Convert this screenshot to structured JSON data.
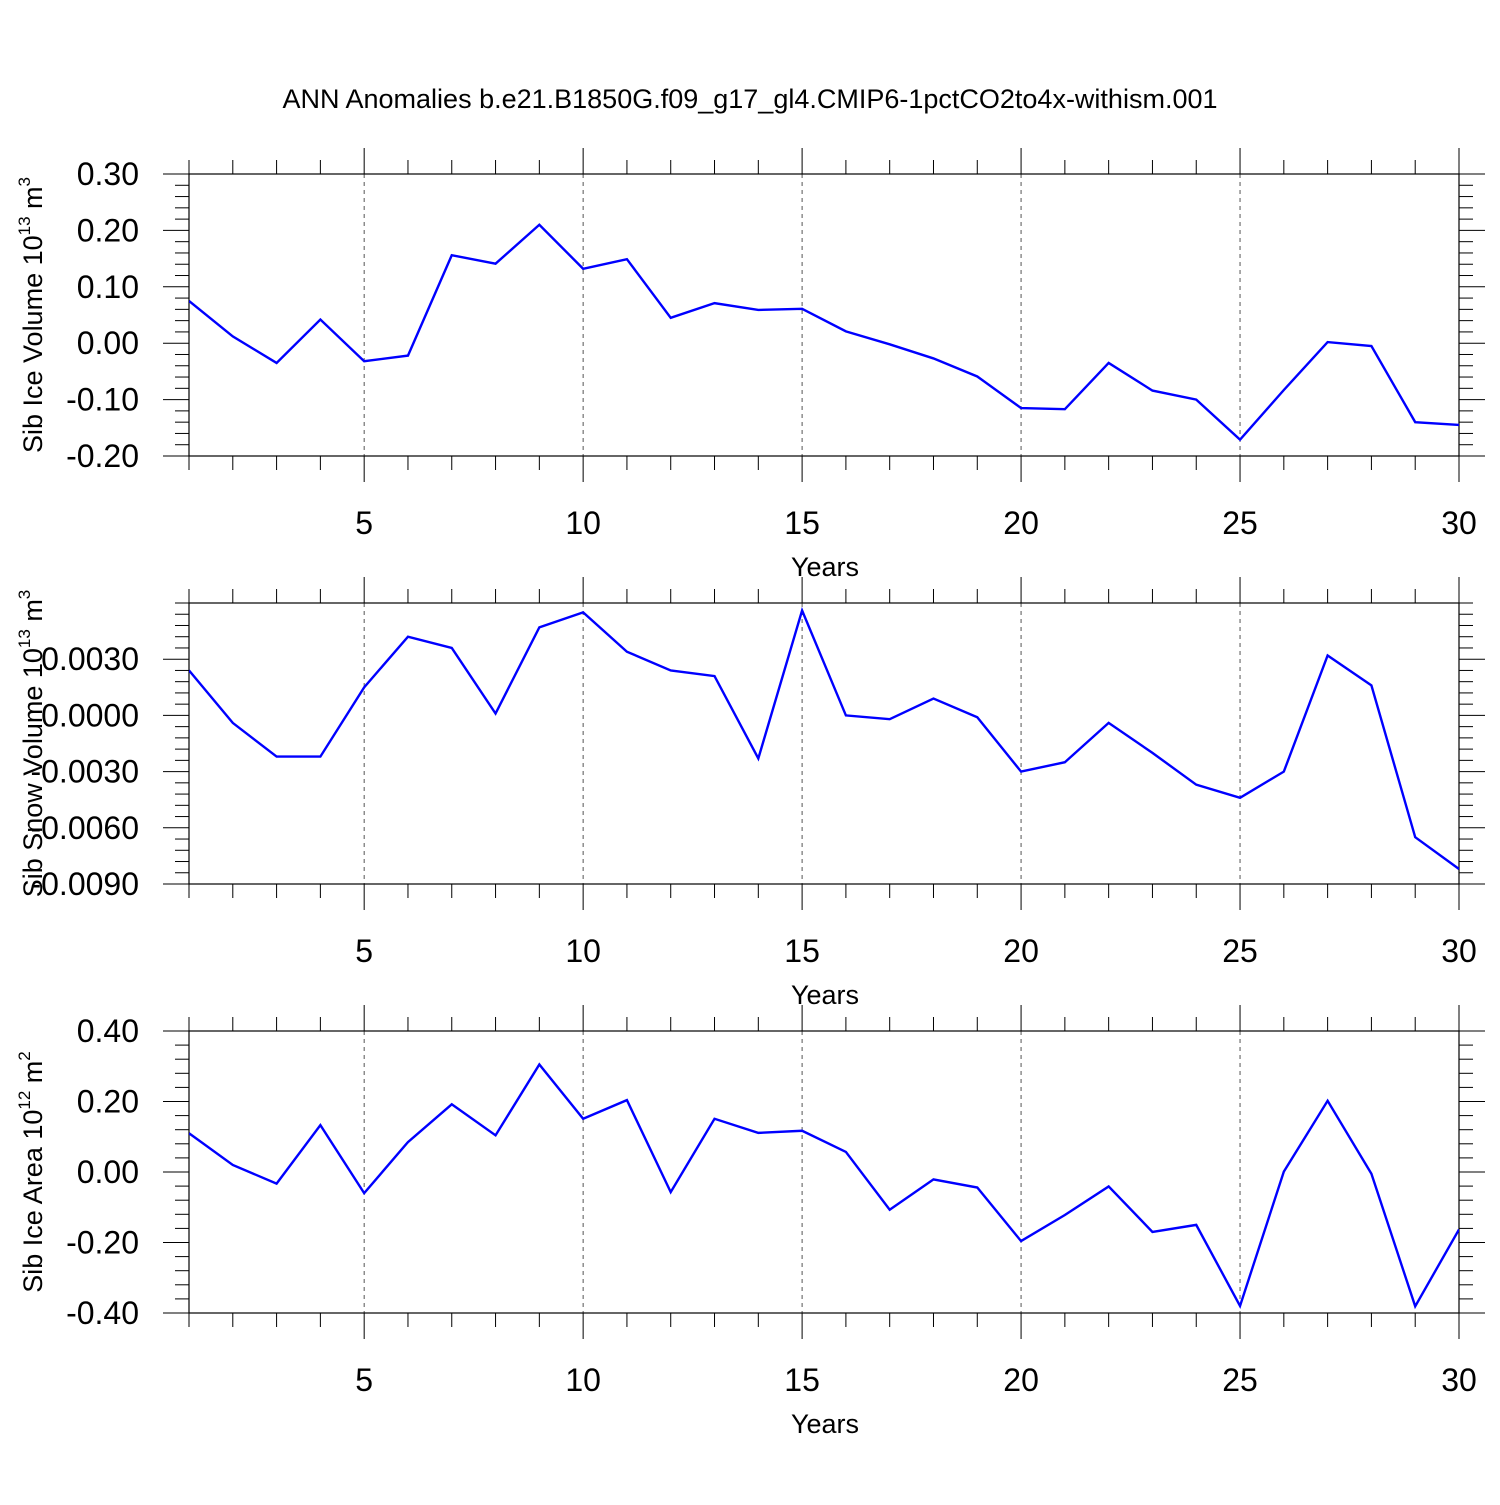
{
  "chart_data": [
    {
      "type": "line",
      "title": "ANN Anomalies b.e21.B1850G.f09_g17_gl4.CMIP6-1pctCO2to4x-withism.001",
      "xlabel": "Years",
      "ylabel": "Sib Ice Volume 10",
      "ylabel_exp": "13",
      "ylabel_unit": " m",
      "ylabel_unit_exp": "3",
      "xlim": [
        1,
        30
      ],
      "ylim": [
        -0.2,
        0.3
      ],
      "xticks": [
        5,
        10,
        15,
        20,
        25,
        30
      ],
      "yticks": [
        -0.2,
        -0.1,
        0.0,
        0.1,
        0.2,
        0.3
      ],
      "ytick_labels": [
        "-0.20",
        "-0.10",
        "0.00",
        "0.10",
        "0.20",
        "0.30"
      ],
      "grid": "dashed vertical at major x ticks",
      "line_color": "#0000ff",
      "series": [
        {
          "x": [
            1,
            2,
            3,
            4,
            5,
            6,
            7,
            8,
            9,
            10,
            11,
            12,
            13,
            14,
            15,
            16,
            17,
            18,
            19,
            20,
            21,
            22,
            23,
            24,
            25,
            26,
            27,
            28,
            29,
            30
          ],
          "values": [
            0.075,
            0.012,
            -0.035,
            0.042,
            -0.032,
            -0.022,
            0.156,
            0.141,
            0.21,
            0.132,
            0.149,
            0.045,
            0.071,
            0.059,
            0.061,
            0.021,
            -0.002,
            -0.027,
            -0.059,
            -0.115,
            -0.117,
            -0.035,
            -0.084,
            -0.1,
            -0.171,
            -0.083,
            0.002,
            -0.005,
            -0.14,
            -0.145
          ]
        }
      ]
    },
    {
      "type": "line",
      "xlabel": "Years",
      "ylabel": "Sib Snow Volume 10",
      "ylabel_exp": "13",
      "ylabel_unit": " m",
      "ylabel_unit_exp": "3",
      "xlim": [
        1,
        30
      ],
      "ylim": [
        -0.009,
        0.006
      ],
      "xticks": [
        5,
        10,
        15,
        20,
        25,
        30
      ],
      "yticks": [
        -0.009,
        -0.006,
        -0.003,
        0.0,
        0.003
      ],
      "ytick_labels": [
        "-0.0090",
        "-0.0060",
        "-0.0030",
        "0.0000",
        "0.0030"
      ],
      "grid": "dashed vertical at major x ticks",
      "line_color": "#0000ff",
      "series": [
        {
          "x": [
            1,
            2,
            3,
            4,
            5,
            6,
            7,
            8,
            9,
            10,
            11,
            12,
            13,
            14,
            15,
            16,
            17,
            18,
            19,
            20,
            21,
            22,
            23,
            24,
            25,
            26,
            27,
            28,
            29,
            30
          ],
          "values": [
            0.0024,
            -0.0004,
            -0.0022,
            -0.0022,
            0.0015,
            0.0042,
            0.0036,
            0.0001,
            0.0047,
            0.0055,
            0.0034,
            0.0024,
            0.0021,
            -0.0023,
            0.0056,
            0.0,
            -0.0002,
            0.0009,
            -0.0001,
            -0.003,
            -0.0025,
            -0.0004,
            -0.002,
            -0.0037,
            -0.0044,
            -0.003,
            0.0032,
            0.0016,
            -0.0065,
            -0.0082
          ]
        }
      ]
    },
    {
      "type": "line",
      "xlabel": "Years",
      "ylabel": "Sib Ice Area 10",
      "ylabel_exp": "12",
      "ylabel_unit": " m",
      "ylabel_unit_exp": "2",
      "xlim": [
        1,
        30
      ],
      "ylim": [
        -0.4,
        0.4
      ],
      "xticks": [
        5,
        10,
        15,
        20,
        25,
        30
      ],
      "yticks": [
        -0.4,
        -0.2,
        0.0,
        0.2,
        0.4
      ],
      "ytick_labels": [
        "-0.40",
        "-0.20",
        "0.00",
        "0.20",
        "0.40"
      ],
      "grid": "dashed vertical at major x ticks",
      "line_color": "#0000ff",
      "series": [
        {
          "x": [
            1,
            2,
            3,
            4,
            5,
            6,
            7,
            8,
            9,
            10,
            11,
            12,
            13,
            14,
            15,
            16,
            17,
            18,
            19,
            20,
            21,
            22,
            23,
            24,
            25,
            26,
            27,
            28,
            29,
            30
          ],
          "values": [
            0.11,
            0.02,
            -0.033,
            0.133,
            -0.06,
            0.085,
            0.192,
            0.104,
            0.305,
            0.151,
            0.204,
            -0.057,
            0.151,
            0.111,
            0.117,
            0.057,
            -0.107,
            -0.021,
            -0.044,
            -0.196,
            -0.122,
            -0.041,
            -0.17,
            -0.15,
            -0.38,
            0.001,
            0.202,
            -0.005,
            -0.381,
            -0.163
          ]
        }
      ]
    }
  ]
}
